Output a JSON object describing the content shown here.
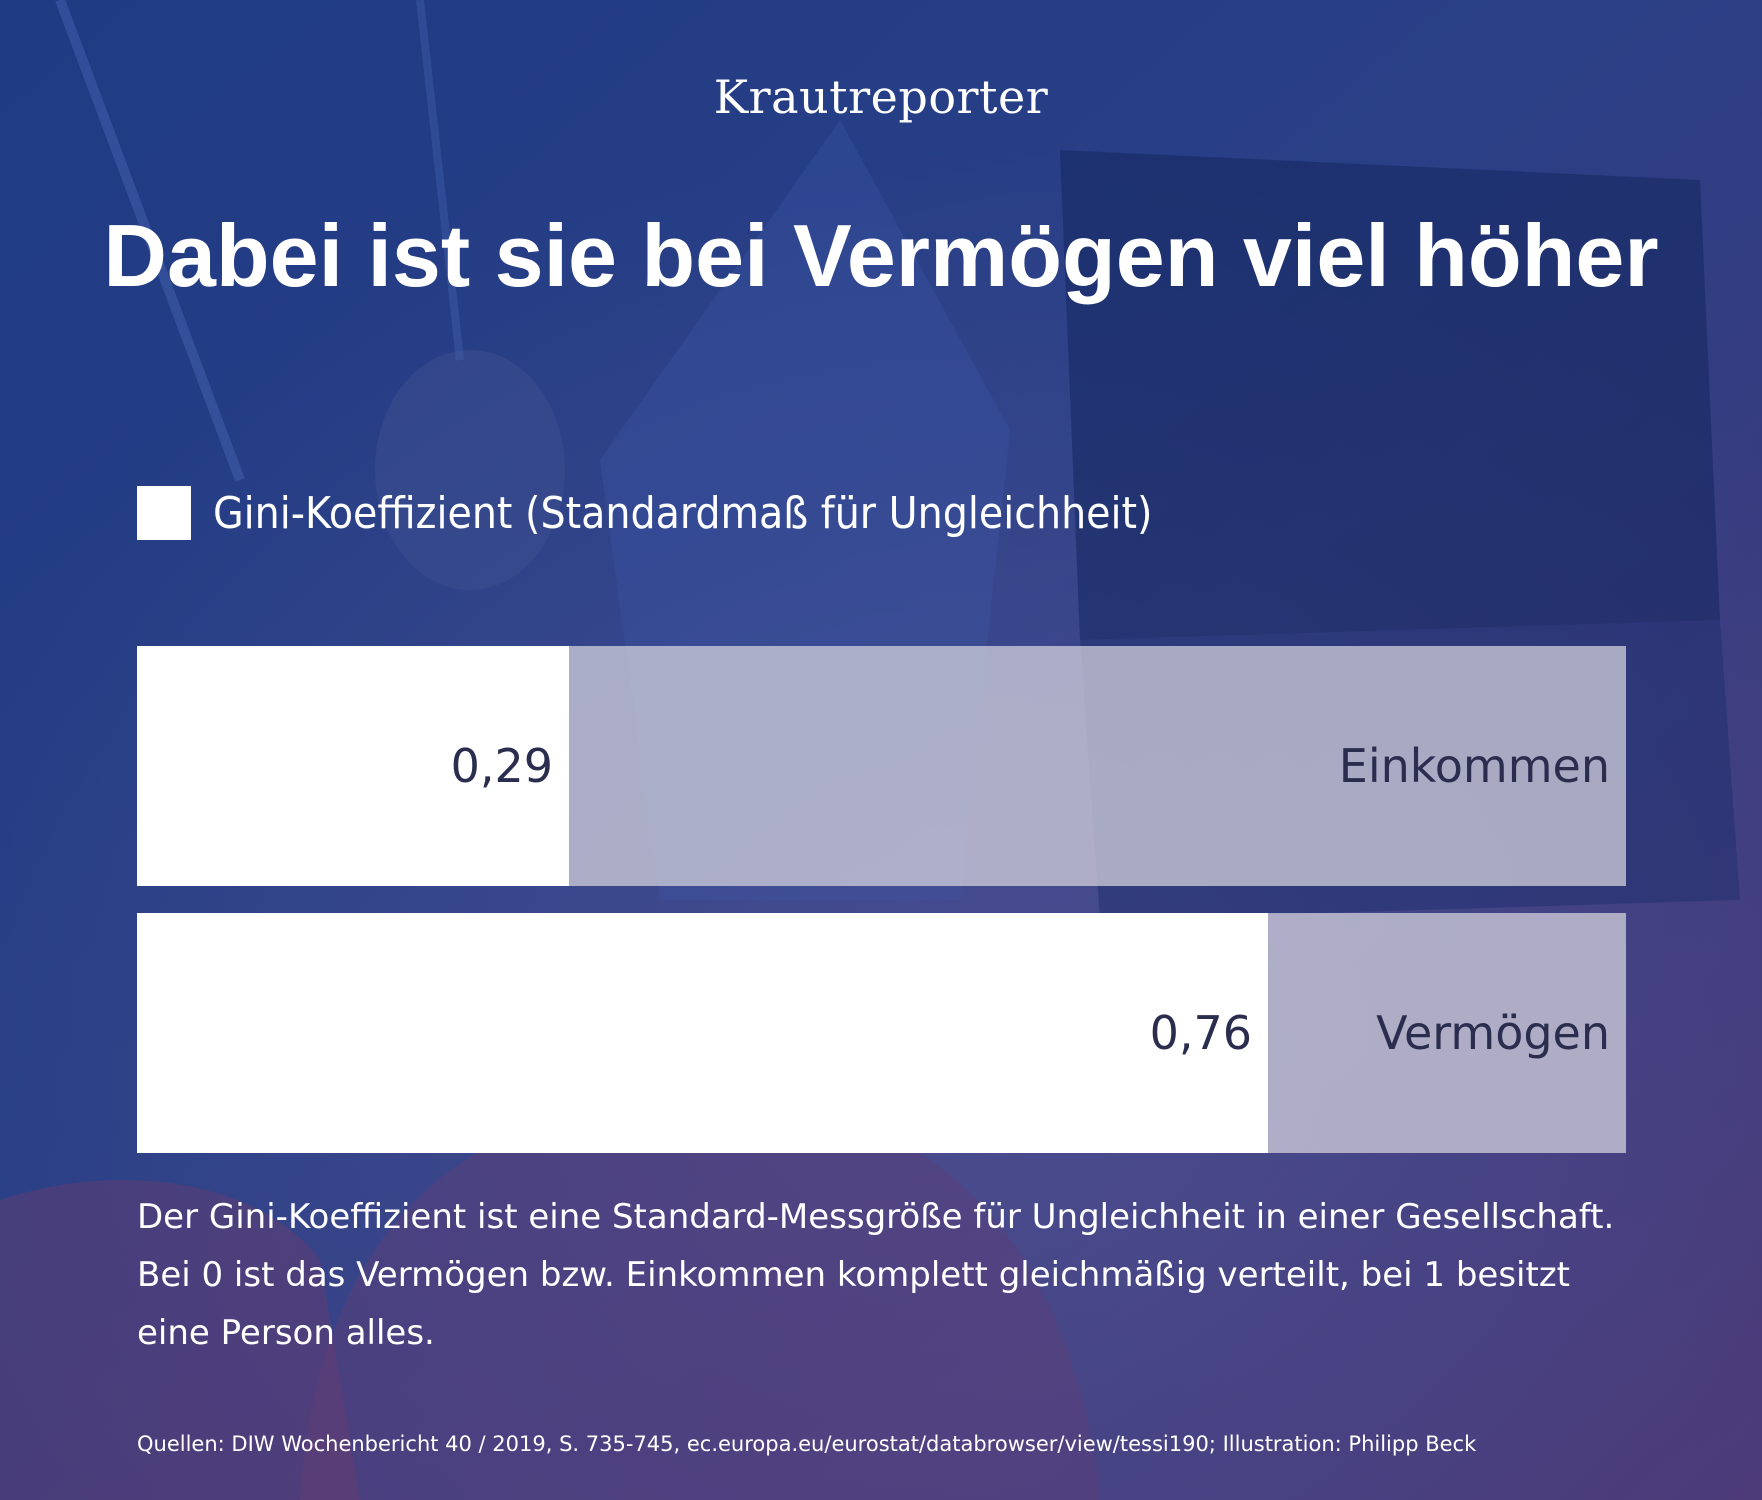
{
  "brand": "Krautreporter",
  "title": "Dabei ist sie bei Vermögen viel höher",
  "legend": {
    "label": "Gini-Koeffizient (Standardmaß für Ungleichheit)"
  },
  "chart_data": {
    "type": "bar",
    "orientation": "horizontal",
    "title": "Dabei ist sie bei Vermögen viel höher",
    "categories": [
      "Einkommen",
      "Vermögen"
    ],
    "values": [
      0.29,
      0.76
    ],
    "value_labels": [
      "0,29",
      "0,76"
    ],
    "series": [
      {
        "name": "Gini-Koeffizient (Standardmaß für Ungleichheit)",
        "values": [
          0.29,
          0.76
        ]
      }
    ],
    "xlim": [
      0,
      1
    ],
    "grid": false,
    "legend_position": "top-left"
  },
  "note": "Der Gini-Koeffizient ist eine Standard-Messgröße für Ungleichheit in einer Gesellschaft. Bei 0 ist das Vermögen bzw. Einkommen komplett gleichmäßig verteilt, bei 1 besitzt eine Person alles.",
  "source": "Quellen: DIW Wochenbericht 40 / 2019, S. 735-745, ec.europa.eu/eurostat/databrowser/view/tessi190; Illustration: Philipp Beck",
  "colors": {
    "bar_fill": "#ffffff",
    "bar_track": "#d8d6df",
    "label_text": "#2b2d4f",
    "background_dark": "#1f3a80",
    "background_purple": "#4a3a78"
  }
}
